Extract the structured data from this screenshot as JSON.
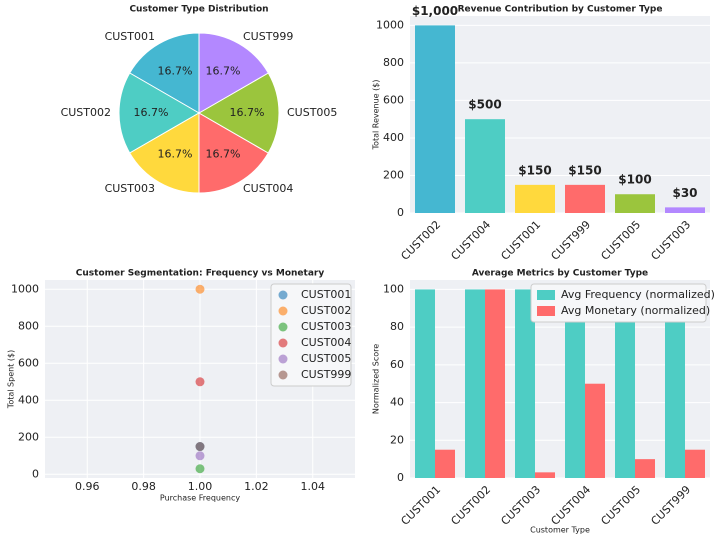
{
  "chart_data": [
    {
      "type": "pie",
      "title": "Customer Type Distribution",
      "categories": [
        "CUST001",
        "CUST002",
        "CUST003",
        "CUST004",
        "CUST005",
        "CUST999"
      ],
      "values": [
        16.7,
        16.7,
        16.7,
        16.7,
        16.7,
        16.7
      ],
      "value_labels": [
        "16.7%",
        "16.7%",
        "16.7%",
        "16.7%",
        "16.7%",
        "16.7%"
      ],
      "colors": [
        "#45b7d1",
        "#4ecdc4",
        "#ffd93d",
        "#ff6b6b",
        "#9bc53d",
        "#b388ff"
      ]
    },
    {
      "type": "bar",
      "title": "Revenue Contribution by Customer Type",
      "ylabel": "Total Revenue ($)",
      "categories": [
        "CUST002",
        "CUST004",
        "CUST001",
        "CUST999",
        "CUST005",
        "CUST003"
      ],
      "values": [
        1000,
        500,
        150,
        150,
        100,
        30
      ],
      "value_labels": [
        "$1,000",
        "$500",
        "$150",
        "$150",
        "$100",
        "$30"
      ],
      "colors": [
        "#45b7d1",
        "#4ecdc4",
        "#ffd93d",
        "#ff6b6b",
        "#9bc53d",
        "#b388ff"
      ],
      "ylim": [
        0,
        1050
      ],
      "yticks": [
        0,
        200,
        400,
        600,
        800,
        1000
      ],
      "grid": true
    },
    {
      "type": "scatter",
      "title": "Customer Segmentation: Frequency vs Monetary",
      "xlabel": "Purchase Frequency",
      "ylabel": "Total Spent ($)",
      "series": [
        {
          "name": "CUST001",
          "color": "#1f77b4",
          "x": [
            1.0
          ],
          "values": [
            150
          ]
        },
        {
          "name": "CUST002",
          "color": "#ff7f0e",
          "x": [
            1.0
          ],
          "values": [
            1000
          ]
        },
        {
          "name": "CUST003",
          "color": "#2ca02c",
          "x": [
            1.0
          ],
          "values": [
            30
          ]
        },
        {
          "name": "CUST004",
          "color": "#d62728",
          "x": [
            1.0
          ],
          "values": [
            500
          ]
        },
        {
          "name": "CUST005",
          "color": "#9467bd",
          "x": [
            1.0
          ],
          "values": [
            100
          ]
        },
        {
          "name": "CUST999",
          "color": "#8c564b",
          "x": [
            1.0
          ],
          "values": [
            150
          ]
        }
      ],
      "xlim": [
        0.945,
        1.055
      ],
      "xticks": [
        0.96,
        0.98,
        {
          "value": 1.0,
          "label": "1.00"
        },
        1.02,
        1.04
      ],
      "ylim": [
        -20,
        1050
      ],
      "yticks": [
        0,
        200,
        400,
        600,
        800,
        1000
      ],
      "grid": true,
      "legend": "upper right"
    },
    {
      "type": "bar",
      "title": "Average Metrics by Customer Type",
      "xlabel": "Customer Type",
      "ylabel": "Normalized Score",
      "categories": [
        "CUST001",
        "CUST002",
        "CUST003",
        "CUST004",
        "CUST005",
        "CUST999"
      ],
      "series": [
        {
          "name": "Avg Frequency (normalized)",
          "color": "#4ecdc4",
          "values": [
            100,
            100,
            100,
            100,
            100,
            100
          ]
        },
        {
          "name": "Avg Monetary (normalized)",
          "color": "#ff6b6b",
          "values": [
            15,
            100,
            3,
            50,
            10,
            15
          ]
        }
      ],
      "ylim": [
        0,
        105
      ],
      "yticks": [
        0,
        20,
        40,
        60,
        80,
        100
      ],
      "grid": true,
      "legend": "upper right"
    }
  ]
}
